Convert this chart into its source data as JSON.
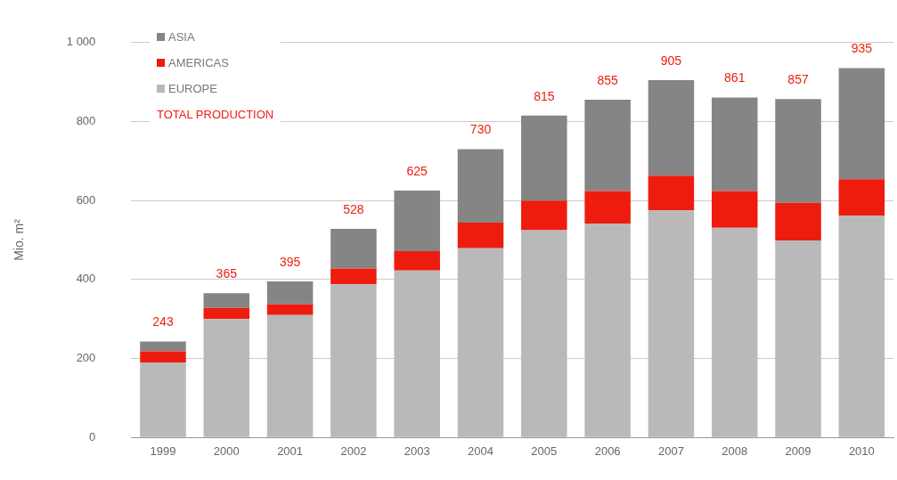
{
  "chart_data": {
    "type": "bar",
    "stacked": true,
    "ylabel": "Mio. m²",
    "categories": [
      "1999",
      "2000",
      "2001",
      "2002",
      "2003",
      "2004",
      "2005",
      "2006",
      "2007",
      "2008",
      "2009",
      "2010"
    ],
    "series": [
      {
        "name": "EUROPE",
        "color": "#b9b9b9",
        "values": [
          190,
          300,
          310,
          388,
          423,
          479,
          525,
          542,
          575,
          531,
          499,
          562
        ]
      },
      {
        "name": "AMERICAS",
        "color": "#ee1c0e",
        "values": [
          28,
          28,
          27,
          40,
          49,
          65,
          75,
          82,
          88,
          93,
          95,
          92
        ]
      },
      {
        "name": "ASIA",
        "color": "#858585",
        "values": [
          25,
          37,
          58,
          100,
          153,
          186,
          215,
          231,
          242,
          237,
          263,
          281
        ]
      }
    ],
    "totals": [
      "243",
      "365",
      "395",
      "528",
      "625",
      "730",
      "815",
      "855",
      "905",
      "861",
      "857",
      "935"
    ],
    "annotations": [
      "TOTAL PRODUCTION"
    ],
    "ylim": [
      0,
      1000
    ],
    "yticks": [
      0,
      200,
      400,
      600,
      800,
      {
        "value": 1000,
        "label": "1 000"
      }
    ],
    "grid": "y",
    "legend": "top left"
  }
}
